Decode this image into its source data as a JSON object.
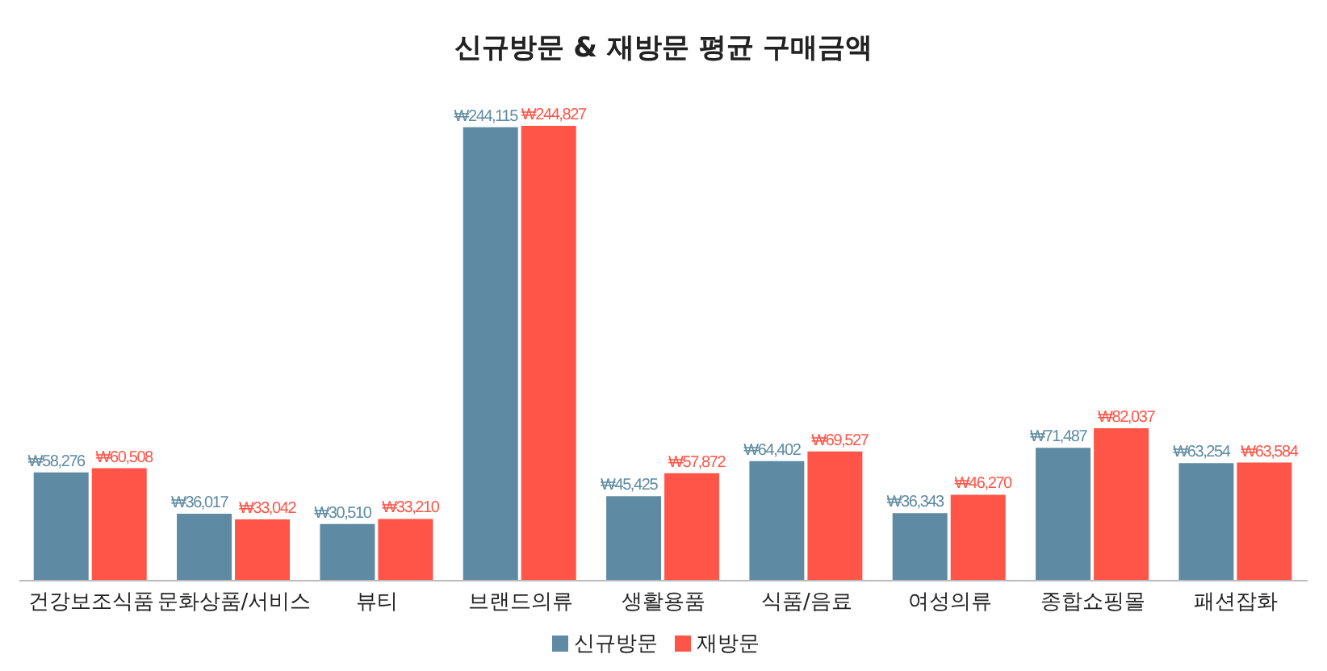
{
  "chart_data": {
    "type": "bar",
    "title": "신규방문 & 재방문 평균 구매금액",
    "categories": [
      "건강보조식품",
      "문화상품/서비스",
      "뷰티",
      "브랜드의류",
      "생활용품",
      "식품/음료",
      "여성의류",
      "종합쇼핑몰",
      "패션잡화"
    ],
    "series": [
      {
        "name": "신규방문",
        "color": "#5e8ba3",
        "values": [
          58276,
          36017,
          30510,
          244115,
          45425,
          64402,
          36343,
          71487,
          63254
        ],
        "value_labels": [
          "₩58,276",
          "₩36,017",
          "₩30,510",
          "₩244,115",
          "₩45,425",
          "₩64,402",
          "₩36,343",
          "₩71,487",
          "₩63,254"
        ]
      },
      {
        "name": "재방문",
        "color": "#ff5548",
        "values": [
          60508,
          33042,
          33210,
          244827,
          57872,
          69527,
          46270,
          82037,
          63584
        ],
        "value_labels": [
          "₩60,508",
          "₩33,042",
          "₩33,210",
          "₩244,827",
          "₩57,872",
          "₩69,527",
          "₩46,270",
          "₩82,037",
          "₩63,584"
        ]
      }
    ],
    "legend": "bottom",
    "grid": false
  }
}
